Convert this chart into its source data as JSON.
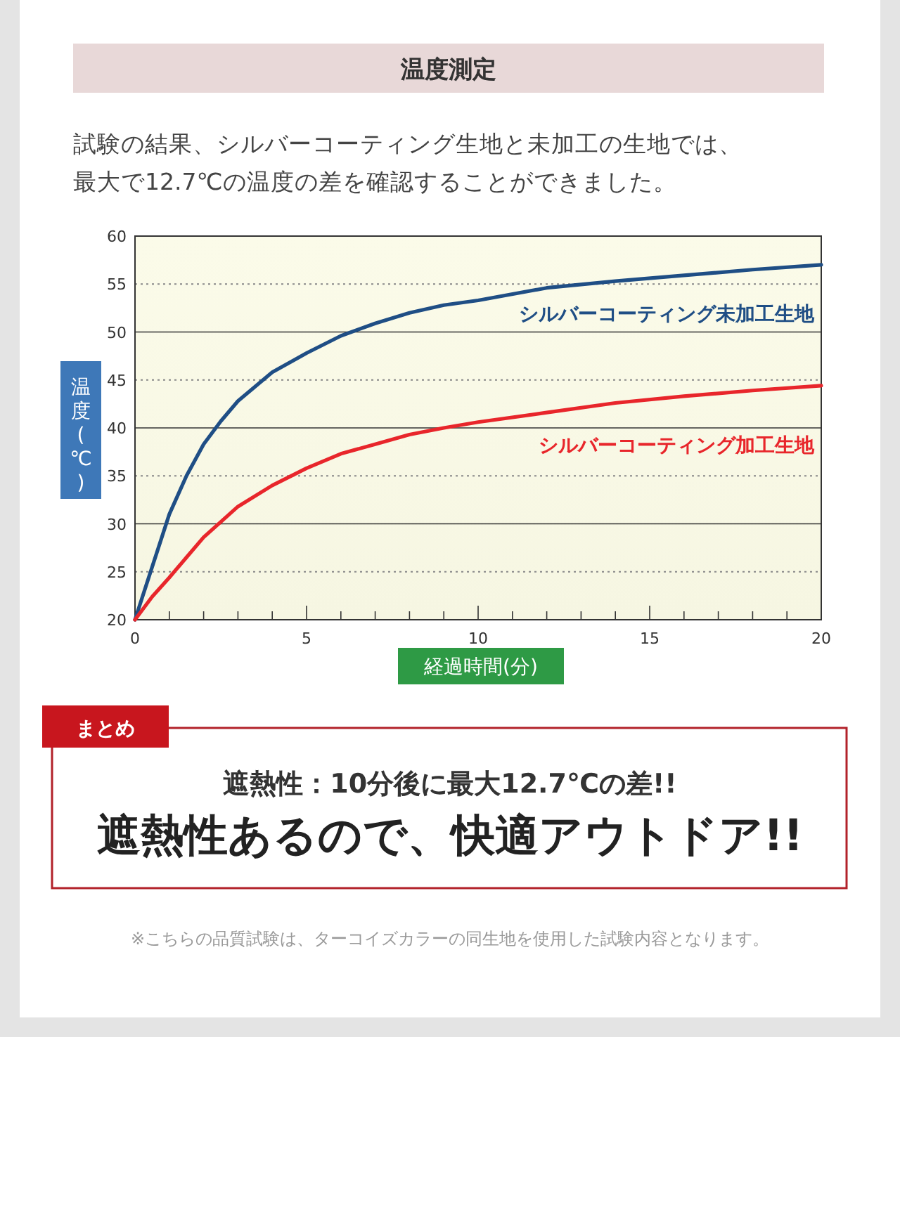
{
  "chart_data": {
    "type": "line",
    "title": "温度測定",
    "subtitle": "試験の結果、シルバーコーティング生地と未加工の生地では、最大で12.7℃の温度の差を確認することができました。",
    "xlabel": "経過時間(分)",
    "ylabel": "温度(℃)",
    "xlim": [
      0,
      20
    ],
    "ylim": [
      20,
      60
    ],
    "xticks": [
      0,
      {
        "value": 1,
        "label": null
      },
      {
        "value": 2,
        "label": null
      },
      {
        "value": 3,
        "label": null
      },
      {
        "value": 4,
        "label": null
      },
      5,
      {
        "value": 6,
        "label": null
      },
      {
        "value": 7,
        "label": null
      },
      {
        "value": 8,
        "label": null
      },
      {
        "value": 9,
        "label": null
      },
      10,
      {
        "value": 11,
        "label": null
      },
      {
        "value": 12,
        "label": null
      },
      {
        "value": 13,
        "label": null
      },
      {
        "value": 14,
        "label": null
      },
      15,
      {
        "value": 16,
        "label": null
      },
      {
        "value": 17,
        "label": null
      },
      {
        "value": 18,
        "label": null
      },
      {
        "value": 19,
        "label": null
      },
      20
    ],
    "yticks": [
      20,
      25,
      30,
      35,
      40,
      45,
      50,
      55,
      60
    ],
    "grid": "y",
    "legend": false,
    "marker": "none",
    "line_style": "solid",
    "series": [
      {
        "name": "シルバーコーティング未加工生地",
        "color": "#1f4e85",
        "x": [
          0,
          0.5,
          1,
          1.5,
          2,
          2.5,
          3,
          4,
          5,
          6,
          7,
          8,
          9,
          10,
          12,
          14,
          16,
          18,
          20
        ],
        "values": [
          20,
          25.5,
          31,
          35,
          38.3,
          40.7,
          42.8,
          45.8,
          47.8,
          49.6,
          50.9,
          52,
          52.8,
          53.3,
          54.6,
          55.3,
          55.9,
          56.5,
          57
        ]
      },
      {
        "name": "シルバーコーティング加工生地",
        "color": "#e8262b",
        "x": [
          0,
          0.5,
          1,
          1.5,
          2,
          3,
          4,
          5,
          6,
          7,
          8,
          9,
          10,
          12,
          14,
          16,
          18,
          20
        ],
        "values": [
          20,
          22.4,
          24.4,
          26.5,
          28.6,
          31.8,
          34,
          35.8,
          37.3,
          38.3,
          39.3,
          40,
          40.6,
          41.6,
          42.6,
          43.3,
          43.9,
          44.4
        ]
      }
    ],
    "annotations": [
      "まとめ",
      "遮熱性：10分後に最大12.7℃の差!!",
      "遮熱性あるので、快適アウトドア!!",
      "※こちらの品質試験は、ターコイズカラーの同生地を使用した試験内容となります。"
    ]
  }
}
